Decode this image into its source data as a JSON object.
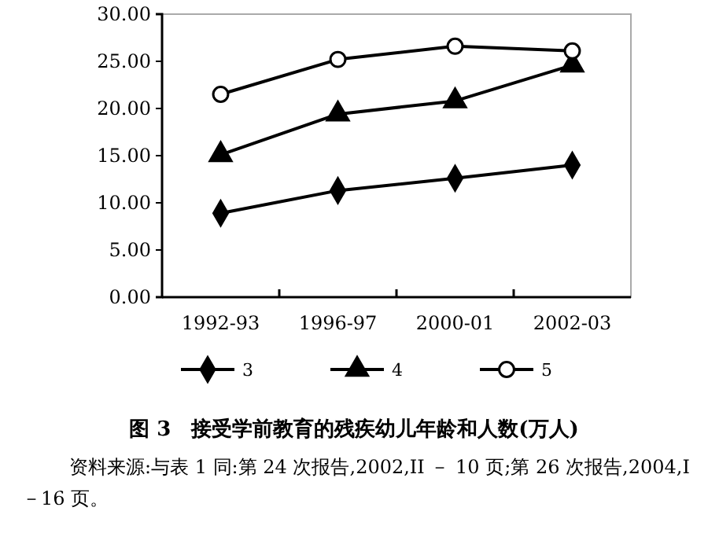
{
  "chart_data": {
    "type": "line",
    "title": "图 3　接受学前教育的残疾幼儿年龄和人数(万人)",
    "categories": [
      "1992-93",
      "1996-97",
      "2000-01",
      "2002-03"
    ],
    "series": [
      {
        "name": "3",
        "color": "#000000",
        "marker": "diamond",
        "values": [
          8.9,
          11.3,
          12.6,
          14.0
        ]
      },
      {
        "name": "4",
        "color": "#000000",
        "marker": "triangle",
        "values": [
          15.1,
          19.4,
          20.8,
          24.6
        ]
      },
      {
        "name": "5",
        "color": "#000000",
        "marker": "circle",
        "values": [
          21.5,
          25.2,
          26.6,
          26.1
        ]
      }
    ],
    "ylim": [
      0,
      30
    ],
    "yticks": [
      {
        "value": 0,
        "label": "0.00"
      },
      {
        "value": 5,
        "label": "5.00"
      },
      {
        "value": 10,
        "label": "10.00"
      },
      {
        "value": 15,
        "label": "15.00"
      },
      {
        "value": 20,
        "label": "20.00"
      },
      {
        "value": 25,
        "label": "25.00"
      },
      {
        "value": 30,
        "label": "30.00"
      }
    ],
    "legend": "bottom",
    "annotations": [
      "资料来源:与表 1 同:第 24 次报告,2002,II － 10 页;第 26 次报告,2004,I－16 页。"
    ]
  }
}
